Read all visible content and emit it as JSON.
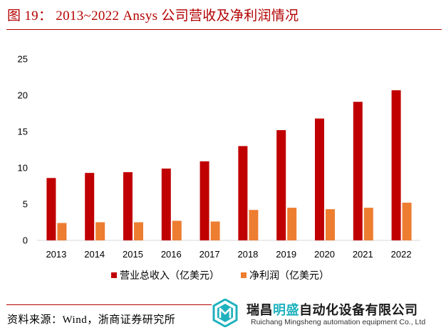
{
  "figure": {
    "title": "图 19： 2013~2022 Ansys 公司营收及净利润情况",
    "source": "资料来源：Wind，浙商证券研究所"
  },
  "logo": {
    "name_prefix": "瑞昌",
    "name_highlight": "明盛",
    "name_suffix": "自动化设备有限公司",
    "english": "Ruichang Mingsheng automation equipment Co., Ltd",
    "accent_color": "#1fb2bd"
  },
  "chart_data": {
    "type": "bar",
    "categories": [
      "2013",
      "2014",
      "2015",
      "2016",
      "2017",
      "2018",
      "2019",
      "2020",
      "2021",
      "2022"
    ],
    "series": [
      {
        "name": "营业总收入（亿美元）",
        "color": "#c00000",
        "values": [
          8.6,
          9.3,
          9.4,
          9.9,
          10.9,
          13.0,
          15.2,
          16.8,
          19.1,
          20.7
        ]
      },
      {
        "name": "净利润（亿美元）",
        "color": "#ed7d31",
        "values": [
          2.4,
          2.5,
          2.5,
          2.7,
          2.6,
          4.2,
          4.5,
          4.3,
          4.5,
          5.2
        ]
      }
    ],
    "yticks": [
      "0",
      "5",
      "10",
      "15",
      "20",
      "25"
    ],
    "ylim": [
      0,
      25
    ],
    "grid": false,
    "legend_position": "bottom"
  }
}
